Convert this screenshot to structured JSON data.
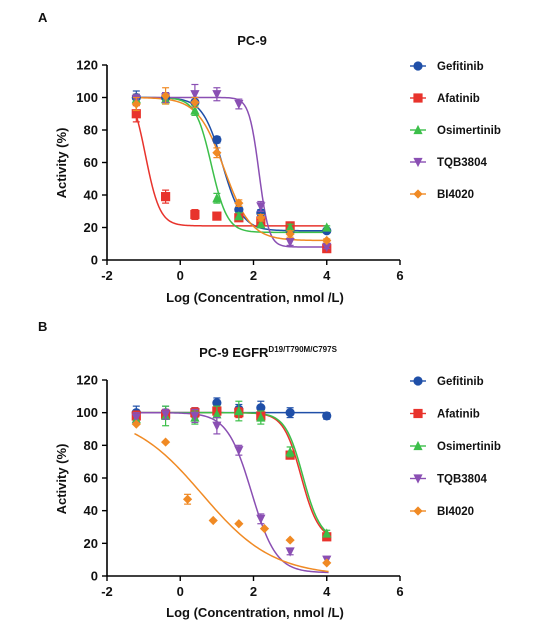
{
  "chart_data": [
    {
      "panel": "A",
      "title": "PC-9",
      "title_superscript": "",
      "type": "scatter",
      "xlabel": "Log (Concentration, nmol /L)",
      "ylabel": "Activity (%)",
      "xlim": [
        -2,
        6
      ],
      "ylim": [
        0,
        120
      ],
      "xticks": [
        "-2",
        "0",
        "2",
        "4",
        "6"
      ],
      "yticks": [
        "0",
        "20",
        "40",
        "60",
        "80",
        "100",
        "120"
      ],
      "legend_position": "right",
      "series": [
        {
          "name": "Gefitinib",
          "marker": "circle",
          "color": "#1f4fa8",
          "x": [
            -1.2,
            -0.4,
            0.4,
            1.0,
            1.6,
            2.2,
            3.0,
            4.0
          ],
          "y": [
            100,
            100,
            97,
            74,
            31,
            29,
            18,
            18
          ],
          "err": [
            4,
            3,
            3,
            2,
            2,
            2,
            2,
            1
          ],
          "fit": {
            "bottom": 18,
            "top": 100,
            "logEC50": 1.15,
            "hill": 1.6
          }
        },
        {
          "name": "Afatinib",
          "marker": "square",
          "color": "#e8332c",
          "x": [
            -1.2,
            -0.4,
            0.4,
            1.0,
            1.6,
            2.2,
            3.0,
            4.0
          ],
          "y": [
            90,
            39,
            28,
            27,
            26,
            24,
            21,
            7
          ],
          "err": [
            5,
            4,
            3,
            2,
            2,
            2,
            2,
            2
          ],
          "fit": {
            "bottom": 21,
            "top": 108,
            "logEC50": -0.95,
            "hill": 2.2
          }
        },
        {
          "name": "Osimertinib",
          "marker": "triangle-up",
          "color": "#3cbf4a",
          "x": [
            -1.2,
            -0.4,
            0.4,
            1.0,
            1.6,
            2.2,
            3.0,
            4.0
          ],
          "y": [
            99,
            99,
            92,
            38,
            27,
            22,
            20,
            20
          ],
          "err": [
            3,
            3,
            3,
            3,
            2,
            2,
            2,
            1
          ],
          "fit": {
            "bottom": 17,
            "top": 100,
            "logEC50": 0.85,
            "hill": 2.0
          }
        },
        {
          "name": "TQB3804",
          "marker": "triangle-down",
          "color": "#8a4fb3",
          "x": [
            -1.2,
            -0.4,
            0.4,
            1.0,
            1.6,
            2.2,
            3.0,
            4.0
          ],
          "y": [
            99,
            100,
            102,
            102,
            96,
            33,
            11,
            8
          ],
          "err": [
            3,
            3,
            6,
            4,
            3,
            3,
            2,
            1
          ],
          "fit": {
            "bottom": 8,
            "top": 100,
            "logEC50": 2.15,
            "hill": 3.2
          }
        },
        {
          "name": "BI4020",
          "marker": "diamond",
          "color": "#f08a24",
          "x": [
            -1.2,
            -0.4,
            0.4,
            1.0,
            1.6,
            2.2,
            3.0,
            4.0
          ],
          "y": [
            96,
            101,
            97,
            66,
            35,
            26,
            16,
            12
          ],
          "err": [
            4,
            5,
            3,
            3,
            2,
            2,
            2,
            1
          ],
          "fit": {
            "bottom": 12,
            "top": 100,
            "logEC50": 1.2,
            "hill": 1.2
          }
        }
      ]
    },
    {
      "panel": "B",
      "title": "PC-9 EGFR",
      "title_superscript": "D19/T790M/C797S",
      "type": "scatter",
      "xlabel": "Log (Concentration, nmol /L)",
      "ylabel": "Activity (%)",
      "xlim": [
        -2,
        6
      ],
      "ylim": [
        0,
        120
      ],
      "xticks": [
        "-2",
        "0",
        "2",
        "4",
        "6"
      ],
      "yticks": [
        "0",
        "20",
        "40",
        "60",
        "80",
        "100",
        "120"
      ],
      "legend_position": "right",
      "series": [
        {
          "name": "Gefitinib",
          "marker": "circle",
          "color": "#1f4fa8",
          "x": [
            -1.2,
            -0.4,
            0.4,
            1.0,
            1.6,
            2.2,
            3.0,
            4.0
          ],
          "y": [
            100,
            100,
            100,
            106,
            102,
            103,
            100,
            98
          ],
          "err": [
            4,
            4,
            3,
            3,
            3,
            4,
            3,
            2
          ],
          "fit": {
            "bottom": 0,
            "top": 100,
            "logEC50": 9,
            "hill": 1
          }
        },
        {
          "name": "Afatinib",
          "marker": "square",
          "color": "#e8332c",
          "x": [
            -1.2,
            -0.4,
            0.4,
            1.0,
            1.6,
            2.2,
            3.0,
            4.0
          ],
          "y": [
            98,
            99,
            100,
            101,
            100,
            98,
            74,
            24
          ],
          "err": [
            3,
            3,
            3,
            3,
            3,
            3,
            2,
            2
          ],
          "fit": {
            "bottom": 22,
            "top": 100,
            "logEC50": 3.3,
            "hill": 1.8
          }
        },
        {
          "name": "Osimertinib",
          "marker": "triangle-up",
          "color": "#3cbf4a",
          "x": [
            -1.2,
            -0.4,
            0.4,
            1.0,
            1.6,
            2.2,
            3.0,
            4.0
          ],
          "y": [
            96,
            98,
            97,
            99,
            101,
            97,
            76,
            26
          ],
          "err": [
            3,
            6,
            4,
            5,
            6,
            4,
            3,
            2
          ],
          "fit": {
            "bottom": 22,
            "top": 100,
            "logEC50": 3.35,
            "hill": 1.8
          }
        },
        {
          "name": "TQB3804",
          "marker": "triangle-down",
          "color": "#8a4fb3",
          "x": [
            -1.2,
            -0.4,
            0.4,
            1.0,
            1.6,
            2.2,
            3.0,
            4.0
          ],
          "y": [
            97,
            99,
            98,
            92,
            77,
            35,
            15,
            10
          ],
          "err": [
            3,
            3,
            4,
            5,
            3,
            3,
            2,
            2
          ],
          "fit": {
            "bottom": 2,
            "top": 100,
            "logEC50": 1.95,
            "hill": 1.3
          }
        },
        {
          "name": "BI4020",
          "marker": "diamond",
          "color": "#f08a24",
          "x": [
            -1.2,
            -0.4,
            0.2,
            0.9,
            1.6,
            2.3,
            3.0,
            4.0
          ],
          "y": [
            93,
            82,
            47,
            34,
            32,
            29,
            22,
            8
          ],
          "err": [
            0,
            0,
            3,
            0,
            0,
            0,
            0,
            0
          ],
          "fit": {
            "bottom": 0,
            "top": 100,
            "logEC50": 0.6,
            "hill": 0.45
          }
        }
      ]
    }
  ]
}
